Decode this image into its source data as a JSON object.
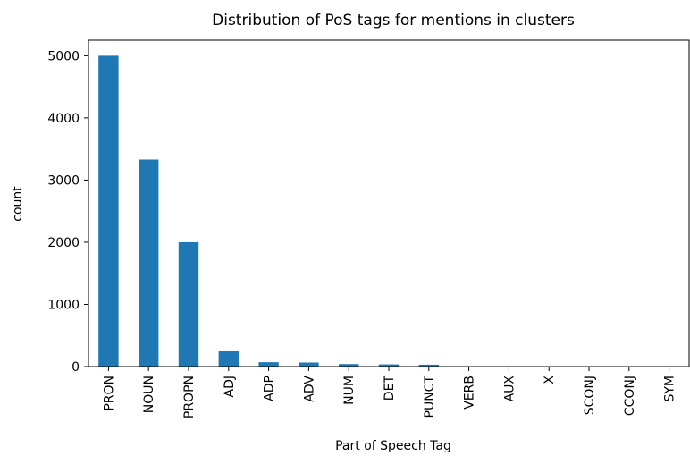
{
  "chart_data": {
    "type": "bar",
    "title": "Distribution of PoS tags for mentions in clusters",
    "xlabel": "Part of Speech Tag",
    "ylabel": "count",
    "categories": [
      "PRON",
      "NOUN",
      "PROPN",
      "ADJ",
      "ADP",
      "ADV",
      "NUM",
      "DET",
      "PUNCT",
      "VERB",
      "AUX",
      "X",
      "SCONJ",
      "CCONJ",
      "SYM"
    ],
    "values": [
      5000,
      3330,
      2000,
      245,
      70,
      65,
      40,
      35,
      30,
      5,
      3,
      2,
      1,
      1,
      1
    ],
    "color": "#1f77b4",
    "ylim": [
      0,
      5250
    ],
    "yticks": [
      0,
      1000,
      2000,
      3000,
      4000,
      5000
    ],
    "grid": false
  }
}
